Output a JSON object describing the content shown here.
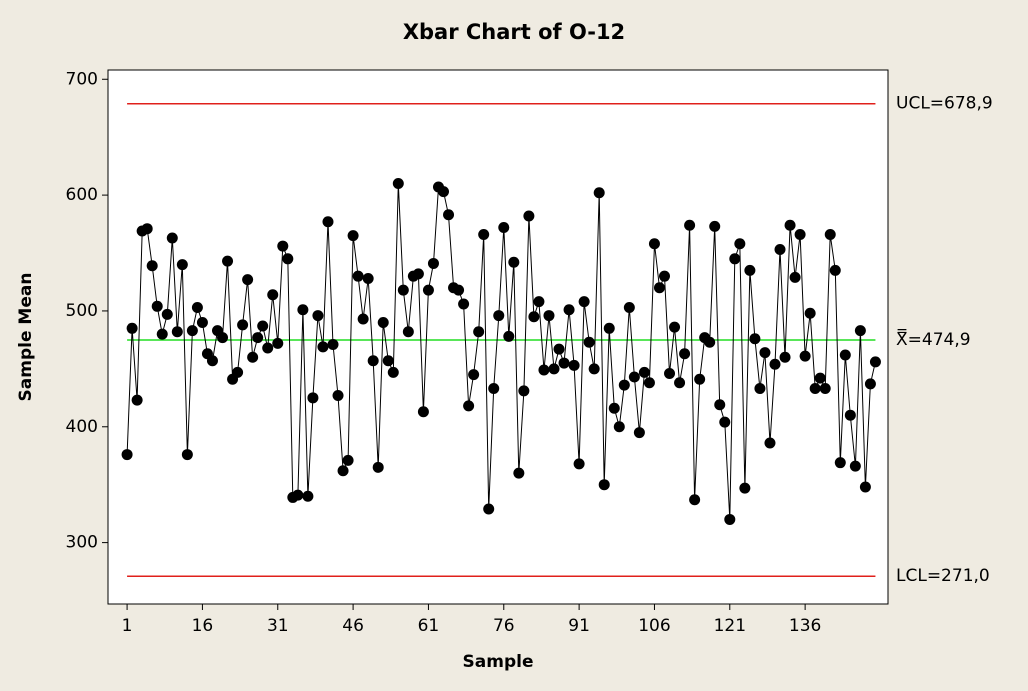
{
  "chart_data": {
    "type": "control",
    "title": "Xbar Chart of O-12",
    "x_label": "Sample",
    "y_label": "Sample Mean",
    "xlim": [
      -2.8,
      152.5
    ],
    "xticks": [
      1,
      16,
      31,
      46,
      61,
      76,
      91,
      106,
      121,
      136
    ],
    "ylim": [
      247,
      708
    ],
    "yticks": [
      300,
      400,
      500,
      600,
      700
    ],
    "series": [
      {
        "name": "Sample Mean",
        "color": "#000000",
        "values": [
          376,
          485,
          423,
          569,
          571,
          539,
          504,
          480,
          497,
          563,
          482,
          540,
          376,
          483,
          503,
          490,
          463,
          457,
          483,
          477,
          543,
          441,
          447,
          488,
          527,
          460,
          477,
          487,
          468,
          514,
          472,
          556,
          545,
          339,
          341,
          501,
          340,
          425,
          496,
          469,
          577,
          471,
          427,
          362,
          371,
          565,
          530,
          493,
          528,
          457,
          365,
          490,
          457,
          447,
          610,
          518,
          482,
          530,
          532,
          413,
          518,
          541,
          607,
          603,
          583,
          520,
          518,
          506,
          418,
          445,
          482,
          566,
          329,
          433,
          496,
          572,
          478,
          542,
          360,
          431,
          582,
          495,
          508,
          449,
          496,
          450,
          467,
          455,
          501,
          453,
          368,
          508,
          473,
          450,
          602,
          350,
          485,
          416,
          400,
          436,
          503,
          443,
          395,
          447,
          438,
          558,
          520,
          530,
          446,
          486,
          438,
          463,
          574,
          337,
          441,
          477,
          473,
          573,
          419,
          404,
          320,
          545,
          558,
          347,
          535,
          476,
          433,
          464,
          386,
          454,
          553,
          460,
          574,
          529,
          566,
          461,
          498,
          433,
          442,
          433,
          566,
          535,
          369,
          462,
          410,
          366,
          483,
          348,
          437,
          456
        ]
      }
    ],
    "limits": [
      {
        "value": 678.9,
        "label": "UCL=678,9",
        "color": "#e0201b"
      },
      {
        "value": 474.9,
        "label": "X̿=474,9",
        "color": "#22dd22"
      },
      {
        "value": 271.0,
        "label": "LCL=271,0",
        "color": "#e0201b"
      }
    ]
  }
}
